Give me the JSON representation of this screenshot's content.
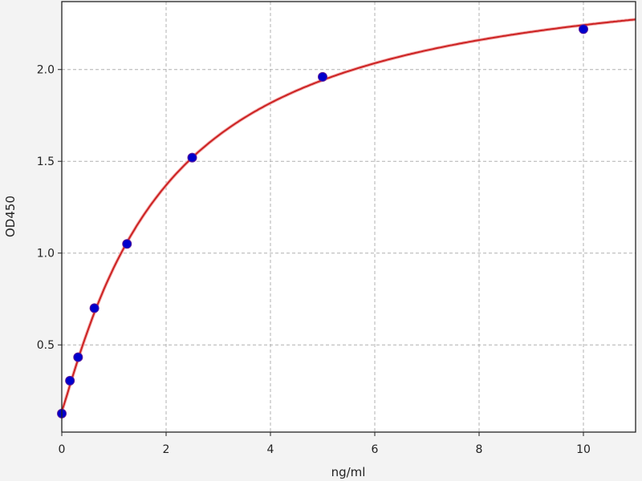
{
  "chart_data": {
    "type": "scatter",
    "title": "",
    "xlabel": "ng/ml",
    "ylabel": "OD450",
    "xlim": [
      0,
      11
    ],
    "ylim": [
      0.025,
      2.37
    ],
    "x_ticks": [
      0,
      2,
      4,
      6,
      8,
      10
    ],
    "x_tick_labels": [
      "0",
      "2",
      "4",
      "6",
      "8",
      "10"
    ],
    "y_ticks": [
      0.5,
      1.0,
      1.5,
      2.0
    ],
    "y_tick_labels": [
      "0.5",
      "1.0",
      "1.5",
      "2.0"
    ],
    "grid": true,
    "series": [
      {
        "type": "scatter",
        "color": "#0000cc",
        "x": [
          0,
          0.156,
          0.3125,
          0.625,
          1.25,
          2.5,
          5,
          10
        ],
        "y": [
          0.126,
          0.305,
          0.433,
          0.7,
          1.05,
          1.52,
          1.96,
          2.22
        ]
      },
      {
        "type": "line",
        "color": "#cc2222",
        "fit": "4-parameter logistic"
      }
    ]
  }
}
